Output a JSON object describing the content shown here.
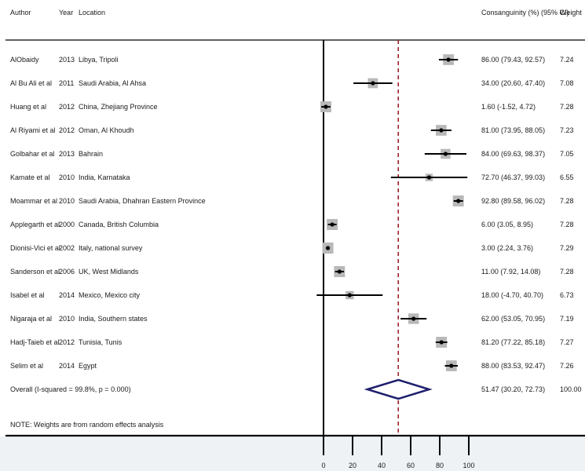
{
  "header": {
    "author": "Author",
    "year": "Year",
    "location": "Location",
    "effect": "Consanguinity (%) (95% CI)",
    "weight": "Weight"
  },
  "note": "NOTE: Weights are from random effects analysis",
  "chart_data": {
    "type": "forest",
    "xlabel": "",
    "xlim": [
      0,
      100
    ],
    "xticks": [
      0,
      20,
      40,
      60,
      80,
      100
    ],
    "reference_line": 51.47,
    "studies": [
      {
        "author": "AlObaidy",
        "year": "2013",
        "location": "Libya, Tripoli",
        "est": 86.0,
        "lo": 79.43,
        "hi": 92.57,
        "ci_text": "86.00 (79.43, 92.57)",
        "weight": "7.24"
      },
      {
        "author": "Al Bu Ali et al",
        "year": "2011",
        "location": "Saudi Arabia, Al Ahsa",
        "est": 34.0,
        "lo": 20.6,
        "hi": 47.4,
        "ci_text": "34.00 (20.60, 47.40)",
        "weight": "7.08"
      },
      {
        "author": "Huang et al",
        "year": "2012",
        "location": "China, Zhejiang Province",
        "est": 1.6,
        "lo": -1.52,
        "hi": 4.72,
        "ci_text": "1.60 (-1.52, 4.72)",
        "weight": "7.28"
      },
      {
        "author": "Al Riyami et al",
        "year": "2012",
        "location": "Oman, Al Khoudh",
        "est": 81.0,
        "lo": 73.95,
        "hi": 88.05,
        "ci_text": "81.00 (73.95, 88.05)",
        "weight": "7.23"
      },
      {
        "author": "Golbahar et al",
        "year": "2013",
        "location": "Bahrain",
        "est": 84.0,
        "lo": 69.63,
        "hi": 98.37,
        "ci_text": "84.00 (69.63, 98.37)",
        "weight": "7.05"
      },
      {
        "author": "Kamate et al",
        "year": "2010",
        "location": "India, Karnataka",
        "est": 72.7,
        "lo": 46.37,
        "hi": 99.03,
        "ci_text": "72.70 (46.37, 99.03)",
        "weight": "6.55"
      },
      {
        "author": "Moammar et al",
        "year": "2010",
        "location": "Saudi Arabia, Dhahran Eastern Province",
        "est": 92.8,
        "lo": 89.58,
        "hi": 96.02,
        "ci_text": "92.80 (89.58, 96.02)",
        "weight": "7.28"
      },
      {
        "author": "Applegarth et al",
        "year": "2000",
        "location": "Canada, British Columbia",
        "est": 6.0,
        "lo": 3.05,
        "hi": 8.95,
        "ci_text": "6.00 (3.05, 8.95)",
        "weight": "7.28"
      },
      {
        "author": "Dionisi-Vici et al",
        "year": "2002",
        "location": "Italy, national survey",
        "est": 3.0,
        "lo": 2.24,
        "hi": 3.76,
        "ci_text": "3.00 (2.24, 3.76)",
        "weight": "7.29"
      },
      {
        "author": "Sanderson et al",
        "year": "2006",
        "location": "UK, West Midlands",
        "est": 11.0,
        "lo": 7.92,
        "hi": 14.08,
        "ci_text": "11.00 (7.92, 14.08)",
        "weight": "7.28"
      },
      {
        "author": "Isabel et al",
        "year": "2014",
        "location": "Mexico, Mexico city",
        "est": 18.0,
        "lo": -4.7,
        "hi": 40.7,
        "ci_text": "18.00 (-4.70, 40.70)",
        "weight": "6.73"
      },
      {
        "author": "Nigaraja et al",
        "year": "2010",
        "location": "India, Southern states",
        "est": 62.0,
        "lo": 53.05,
        "hi": 70.95,
        "ci_text": "62.00 (53.05, 70.95)",
        "weight": "7.19"
      },
      {
        "author": "Hadj-Taieb et al",
        "year": "2012",
        "location": "Tunisia, Tunis",
        "est": 81.2,
        "lo": 77.22,
        "hi": 85.18,
        "ci_text": "81.20 (77.22, 85.18)",
        "weight": "7.27"
      },
      {
        "author": "Selim et al",
        "year": "2014",
        "location": "Egypt",
        "est": 88.0,
        "lo": 83.53,
        "hi": 92.47,
        "ci_text": "88.00 (83.53, 92.47)",
        "weight": "7.26"
      }
    ],
    "overall": {
      "label": "Overall  (I-squared = 99.8%, p = 0.000)",
      "est": 51.47,
      "lo": 30.2,
      "hi": 72.73,
      "ci_text": "51.47 (30.20, 72.73)",
      "weight": "100.00"
    },
    "colors": {
      "marker": "#b8b8b8",
      "line": "#000000",
      "diamond": "#1f1f6e",
      "reference": "#a0202a",
      "footer": "#eef2f5"
    }
  }
}
